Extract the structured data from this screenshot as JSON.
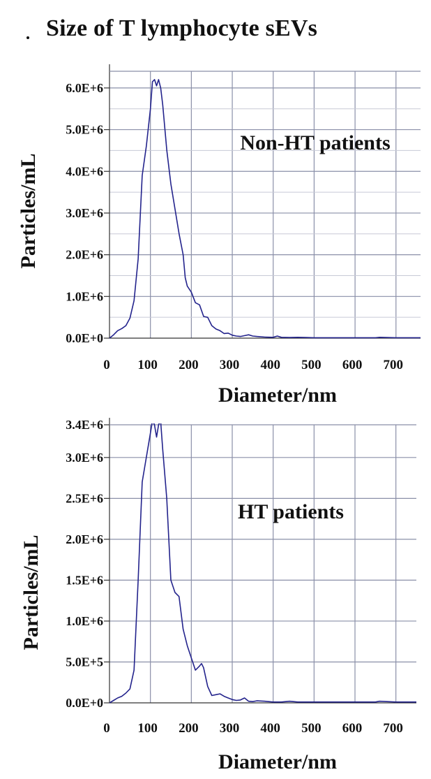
{
  "title": "Size of T lymphocyte sEVs",
  "chart_data": [
    {
      "type": "line",
      "annotation": "Non-HT patients",
      "xlabel": "Diameter/nm",
      "ylabel": "Particles/mL",
      "xlim": [
        0,
        760
      ],
      "ylim": [
        0,
        6400000
      ],
      "xticks": [
        0,
        100,
        200,
        300,
        400,
        500,
        600,
        700
      ],
      "xtick_labels": [
        "0",
        "100",
        "200",
        "300",
        "400",
        "500",
        "600",
        "700"
      ],
      "yticks": [
        0,
        1000000,
        2000000,
        3000000,
        4000000,
        5000000,
        6000000
      ],
      "ytick_labels": [
        "0.0E+0",
        "1.0E+6",
        "2.0E+6",
        "3.0E+6",
        "4.0E+6",
        "5.0E+6",
        "6.0E+6"
      ],
      "grid": true,
      "series": [
        {
          "color": "#23238c",
          "x": [
            0,
            10,
            20,
            30,
            40,
            50,
            60,
            70,
            80,
            90,
            100,
            105,
            110,
            115,
            120,
            125,
            130,
            140,
            150,
            160,
            170,
            180,
            185,
            190,
            200,
            210,
            220,
            230,
            240,
            250,
            260,
            270,
            280,
            290,
            300,
            310,
            320,
            330,
            340,
            350,
            360,
            380,
            400,
            410,
            420,
            440,
            460,
            480,
            500,
            550,
            600,
            650,
            660,
            700,
            760
          ],
          "y": [
            0,
            80000,
            180000,
            230000,
            300000,
            480000,
            900000,
            1900000,
            3900000,
            4600000,
            5500000,
            6150000,
            6200000,
            6050000,
            6200000,
            6000000,
            5600000,
            4500000,
            3700000,
            3100000,
            2500000,
            2000000,
            1450000,
            1250000,
            1100000,
            850000,
            800000,
            520000,
            500000,
            300000,
            220000,
            180000,
            110000,
            120000,
            70000,
            50000,
            40000,
            60000,
            80000,
            50000,
            40000,
            25000,
            20000,
            50000,
            20000,
            15000,
            20000,
            15000,
            10000,
            10000,
            10000,
            10000,
            20000,
            10000,
            10000
          ]
        }
      ]
    },
    {
      "type": "line",
      "annotation": "HT patients",
      "xlabel": "Diameter/nm",
      "ylabel": "Particles/mL",
      "xlim": [
        0,
        750
      ],
      "ylim": [
        0,
        3400000
      ],
      "xticks": [
        0,
        100,
        200,
        300,
        400,
        500,
        600,
        700
      ],
      "xtick_labels": [
        "0",
        "100",
        "200",
        "300",
        "400",
        "500",
        "600",
        "700"
      ],
      "yticks": [
        0,
        500000,
        1000000,
        1500000,
        2000000,
        2500000,
        3000000,
        3400000
      ],
      "ytick_labels": [
        "0.0E+0",
        "5.0E+5",
        "1.0E+6",
        "1.5E+6",
        "2.0E+6",
        "2.5E+6",
        "3.0E+6",
        "3.4E+6"
      ],
      "grid": true,
      "series": [
        {
          "color": "#23238c",
          "x": [
            0,
            10,
            20,
            30,
            40,
            50,
            60,
            70,
            80,
            90,
            100,
            105,
            110,
            115,
            120,
            125,
            130,
            140,
            150,
            160,
            170,
            180,
            190,
            200,
            210,
            220,
            225,
            230,
            240,
            250,
            260,
            270,
            280,
            290,
            300,
            310,
            320,
            330,
            340,
            350,
            360,
            380,
            400,
            420,
            440,
            460,
            480,
            500,
            550,
            600,
            650,
            660,
            700,
            750
          ],
          "y": [
            0,
            30000,
            60000,
            80000,
            120000,
            170000,
            400000,
            1500000,
            2700000,
            3000000,
            3300000,
            3450000,
            3400000,
            3250000,
            3400000,
            3450000,
            3100000,
            2500000,
            1500000,
            1350000,
            1300000,
            900000,
            700000,
            550000,
            400000,
            450000,
            480000,
            430000,
            200000,
            90000,
            100000,
            110000,
            80000,
            60000,
            40000,
            30000,
            35000,
            60000,
            20000,
            15000,
            25000,
            20000,
            10000,
            10000,
            20000,
            10000,
            10000,
            10000,
            10000,
            10000,
            10000,
            20000,
            10000,
            10000
          ]
        }
      ]
    }
  ]
}
